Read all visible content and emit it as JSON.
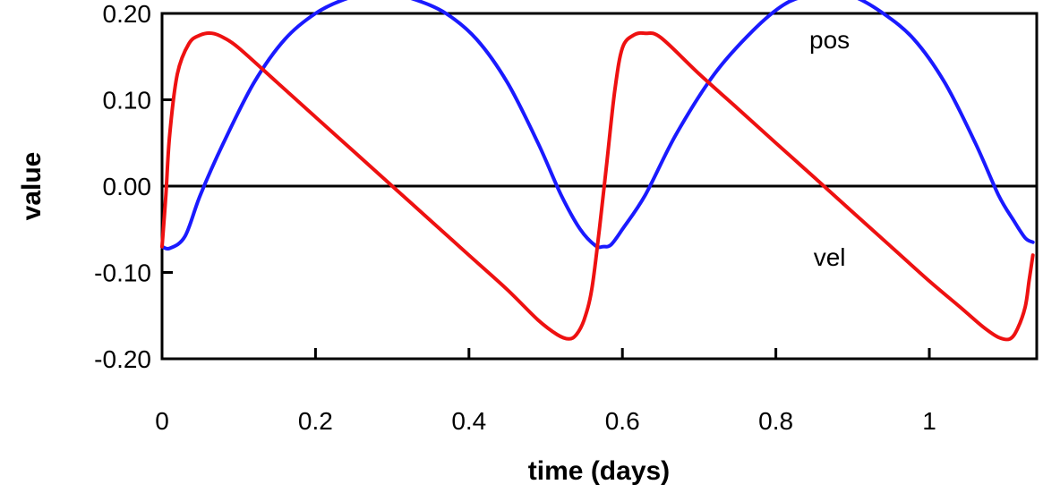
{
  "chart_data": {
    "type": "line",
    "title": "",
    "xlabel": "time (days)",
    "ylabel": "value",
    "xlim": [
      0,
      1.14
    ],
    "ylim": [
      -0.2,
      0.2
    ],
    "xticks": [
      0,
      0.2,
      0.4,
      0.6,
      0.8,
      1
    ],
    "xtick_labels": [
      "0",
      "0.2",
      "0.4",
      "0.6",
      "0.8",
      "1"
    ],
    "yticks": [
      -0.2,
      -0.1,
      0.0,
      0.1,
      0.2
    ],
    "ytick_labels": [
      "-0.20",
      "-0.10",
      "0.00",
      "0.10",
      "0.20"
    ],
    "zero_line": true,
    "grid": false,
    "legend": "none",
    "series": [
      {
        "name": "pos",
        "color": "#1a1aff",
        "x": [
          0,
          0.01,
          0.03,
          0.05,
          0.08,
          0.12,
          0.16,
          0.2,
          0.24,
          0.27,
          0.3,
          0.33,
          0.37,
          0.41,
          0.45,
          0.49,
          0.52,
          0.545,
          0.565,
          0.575,
          0.585,
          0.6,
          0.63,
          0.67,
          0.72,
          0.77,
          0.81,
          0.84,
          0.87,
          0.9,
          0.94,
          0.98,
          1.02,
          1.06,
          1.09,
          1.11,
          1.125,
          1.135
        ],
        "y": [
          -0.07,
          -0.072,
          -0.058,
          -0.01,
          0.05,
          0.12,
          0.17,
          0.2,
          0.217,
          0.222,
          0.222,
          0.216,
          0.2,
          0.17,
          0.12,
          0.05,
          -0.01,
          -0.05,
          -0.069,
          -0.07,
          -0.068,
          -0.05,
          -0.01,
          0.06,
          0.13,
          0.18,
          0.21,
          0.22,
          0.222,
          0.22,
          0.2,
          0.17,
          0.12,
          0.05,
          -0.01,
          -0.04,
          -0.06,
          -0.065
        ]
      },
      {
        "name": "vel",
        "color": "#ee1111",
        "x": [
          0,
          0.005,
          0.01,
          0.02,
          0.035,
          0.05,
          0.065,
          0.08,
          0.1,
          0.15,
          0.2,
          0.25,
          0.3,
          0.35,
          0.4,
          0.45,
          0.49,
          0.515,
          0.53,
          0.54,
          0.55,
          0.56,
          0.57,
          0.58,
          0.59,
          0.6,
          0.615,
          0.63,
          0.65,
          0.7,
          0.75,
          0.8,
          0.85,
          0.9,
          0.95,
          1.0,
          1.04,
          1.07,
          1.09,
          1.105,
          1.115,
          1.125,
          1.13,
          1.135
        ],
        "y": [
          -0.07,
          -0.01,
          0.06,
          0.13,
          0.165,
          0.175,
          0.177,
          0.172,
          0.16,
          0.12,
          0.08,
          0.04,
          0.0,
          -0.04,
          -0.08,
          -0.12,
          -0.155,
          -0.172,
          -0.177,
          -0.172,
          -0.155,
          -0.12,
          -0.05,
          0.03,
          0.11,
          0.16,
          0.175,
          0.177,
          0.172,
          0.13,
          0.09,
          0.05,
          0.01,
          -0.03,
          -0.07,
          -0.11,
          -0.14,
          -0.163,
          -0.175,
          -0.177,
          -0.165,
          -0.14,
          -0.11,
          -0.08
        ]
      }
    ],
    "annotations": [
      {
        "text": "pos",
        "x": 0.87,
        "y": 0.17
      },
      {
        "text": "vel",
        "x": 0.87,
        "y": -0.082
      }
    ]
  }
}
